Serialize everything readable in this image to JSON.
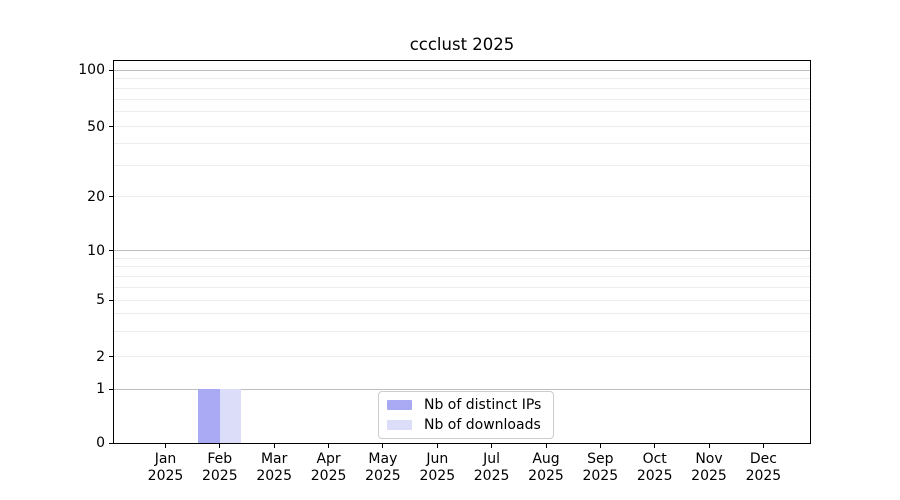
{
  "title": "ccclust 2025",
  "chart_data": {
    "type": "bar",
    "title": "ccclust 2025",
    "categories": [
      "Jan 2025",
      "Feb 2025",
      "Mar 2025",
      "Apr 2025",
      "May 2025",
      "Jun 2025",
      "Jul 2025",
      "Aug 2025",
      "Sep 2025",
      "Oct 2025",
      "Nov 2025",
      "Dec 2025"
    ],
    "months": [
      "Jan",
      "Feb",
      "Mar",
      "Apr",
      "May",
      "Jun",
      "Jul",
      "Aug",
      "Sep",
      "Oct",
      "Nov",
      "Dec"
    ],
    "year_label": "2025",
    "series": [
      {
        "name": "Nb of distinct IPs",
        "color": "#a9aaf3",
        "values": [
          0,
          1,
          0,
          0,
          0,
          0,
          0,
          0,
          0,
          0,
          0,
          0
        ]
      },
      {
        "name": "Nb of downloads",
        "color": "#dcddf8",
        "values": [
          0,
          1,
          0,
          0,
          0,
          0,
          0,
          0,
          0,
          0,
          0,
          0
        ]
      }
    ],
    "yscale": "symlog",
    "yticks": [
      0,
      1,
      2,
      5,
      10,
      20,
      50,
      100
    ],
    "ylim": [
      0,
      115
    ],
    "grid": "horizontal, minor and major",
    "legend_position": "lower center inside plot"
  },
  "colors": {
    "bar_distinct_ips": "#a9aaf3",
    "bar_downloads": "#dcddf8",
    "grid_minor": "#ececec",
    "grid_major": "#bdbdbd",
    "axis": "#000000",
    "legend_border": "#cccccc"
  }
}
